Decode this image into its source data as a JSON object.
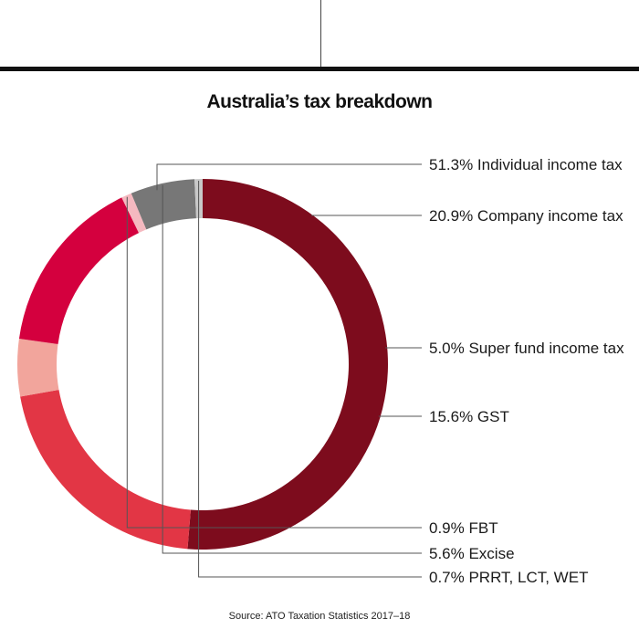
{
  "colors": {
    "background": "#ffffff",
    "text": "#1a1a1a",
    "leader": "#555555"
  },
  "chart_data": {
    "type": "pie",
    "style": "donut",
    "title": "Australia’s tax breakdown",
    "source": "Source: ATO Taxation Statistics 2017–18",
    "direction": "clockwise from top",
    "slices": [
      {
        "label": "51.3% Individual income tax",
        "value": 51.3,
        "color": "#7d0c1d"
      },
      {
        "label": "20.9% Company income tax",
        "value": 20.9,
        "color": "#e23645"
      },
      {
        "label": "5.0% Super fund income tax",
        "value": 5.0,
        "color": "#f2a59c"
      },
      {
        "label": "15.6% GST",
        "value": 15.6,
        "color": "#d4003e"
      },
      {
        "label": "0.9% FBT",
        "value": 0.9,
        "color": "#f5b9c0"
      },
      {
        "label": "5.6% Excise",
        "value": 5.6,
        "color": "#777777"
      },
      {
        "label": "0.7% PRRT, LCT, WET",
        "value": 0.7,
        "color": "#c8c8c8"
      }
    ]
  }
}
